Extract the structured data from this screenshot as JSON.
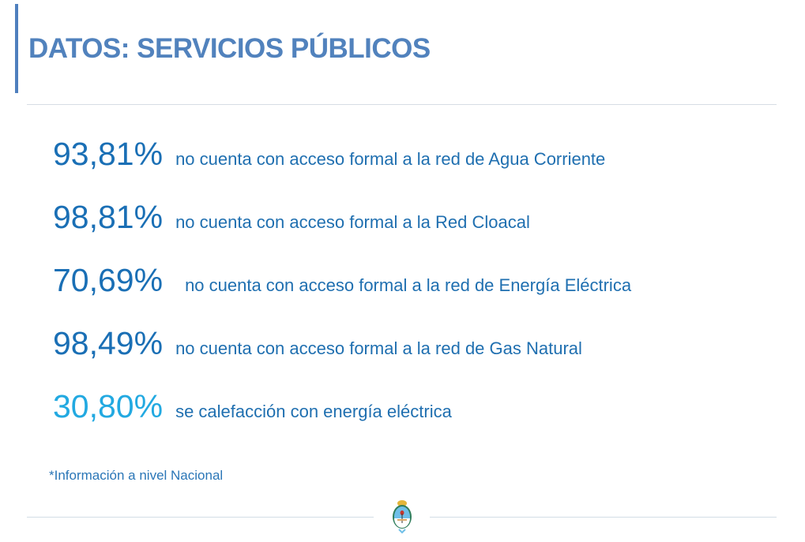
{
  "title": "DATOS: SERVICIOS PÚBLICOS",
  "rows": [
    {
      "value": "93,81%",
      "text": "no cuenta con acceso formal a la red de Agua Corriente"
    },
    {
      "value": "98,81%",
      "text": "no cuenta con acceso formal a la Red Cloacal"
    },
    {
      "value": "70,69%",
      "text": "no cuenta con acceso formal a la red de Energía Eléctrica"
    },
    {
      "value": "98,49%",
      "text": "no cuenta con acceso formal a la red de Gas Natural"
    },
    {
      "value": "30,80%",
      "text": "se calefacción con energía eléctrica"
    }
  ],
  "note": "*Información a nivel Nacional",
  "colors": {
    "title": "#5182bd",
    "value": "#1a6fb5",
    "value_highlight": "#22a9e1"
  },
  "logo": "escudo-argentina"
}
